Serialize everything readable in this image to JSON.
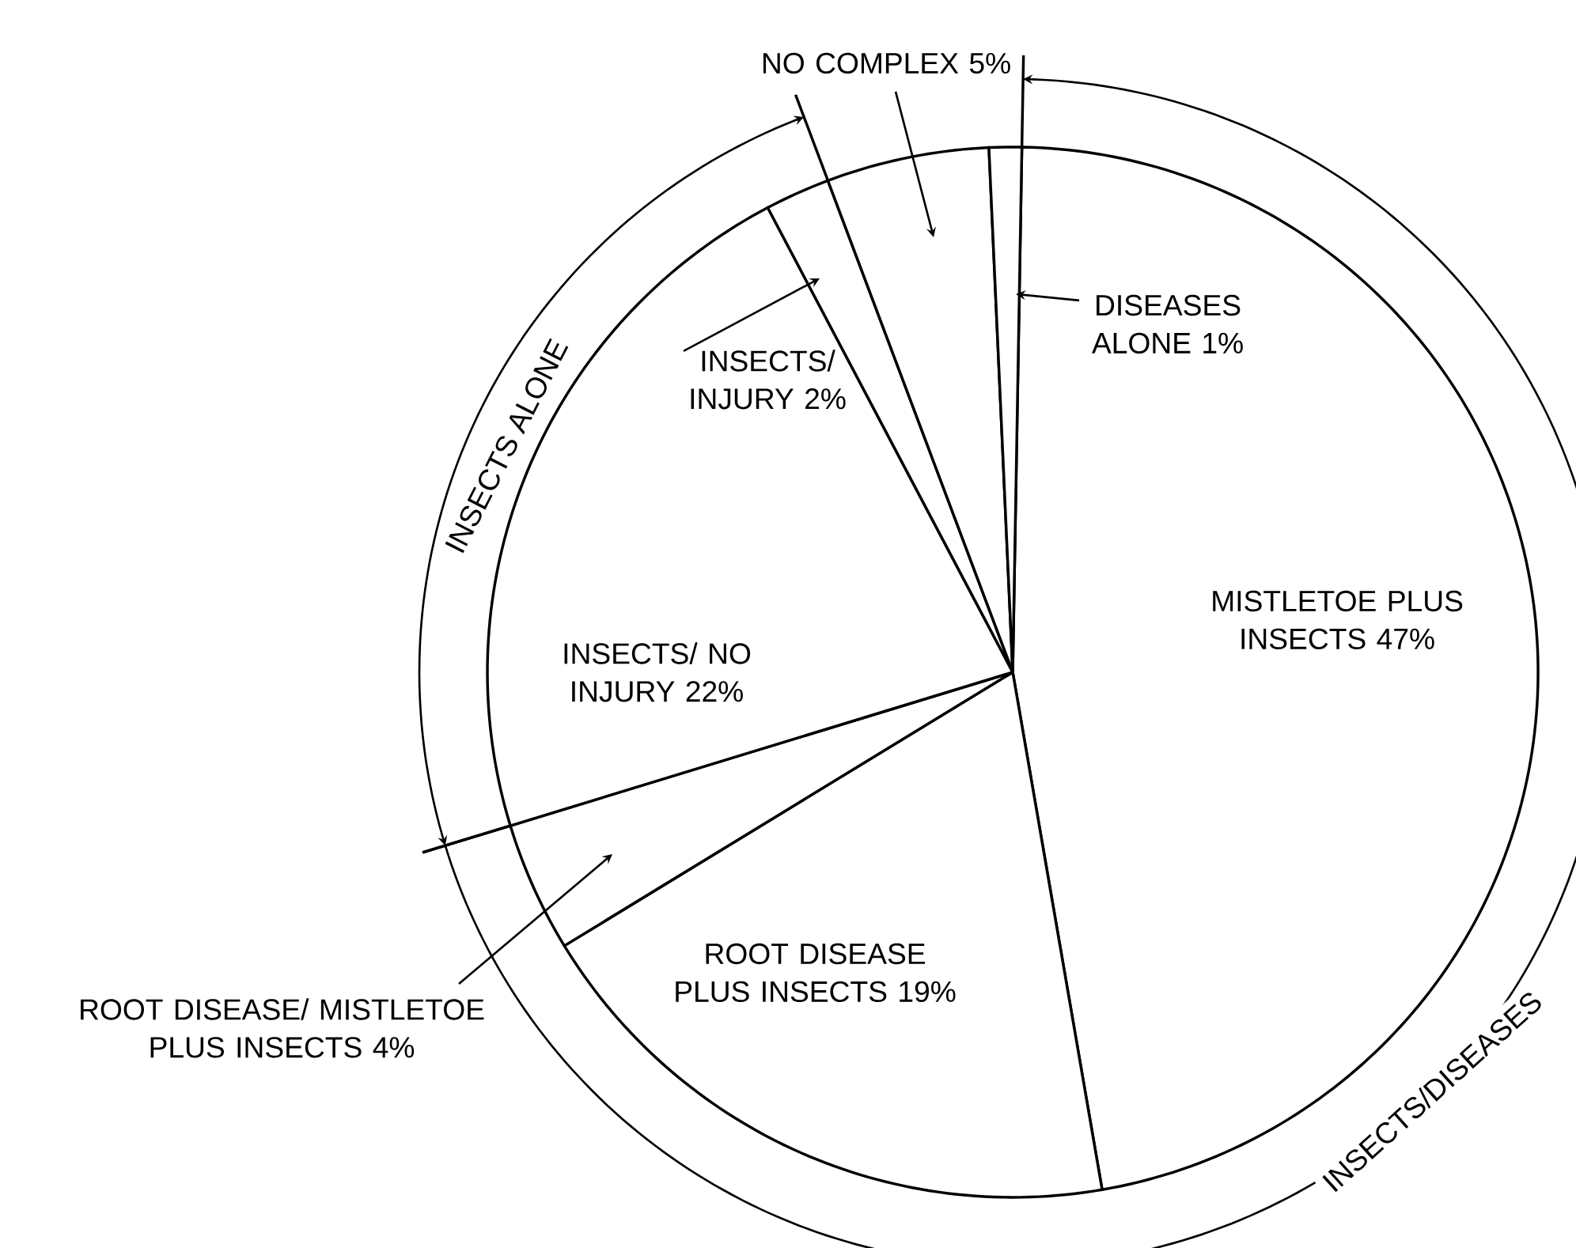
{
  "chart_data": {
    "type": "pie",
    "categories": [
      "MISTLETOE PLUS INSECTS",
      "ROOT DISEASE PLUS INSECTS",
      "ROOT DISEASE/ MISTLETOE PLUS INSECTS",
      "INSECTS/ NO INJURY",
      "INSECTS/ INJURY",
      "NO COMPLEX",
      "DISEASES ALONE"
    ],
    "values": [
      47,
      19,
      4,
      22,
      2,
      5,
      1
    ],
    "value_labels": [
      "47%",
      "19%",
      "4%",
      "22%",
      "2%",
      "5%",
      "1%"
    ],
    "colors": [
      "#ffffff",
      "#ffffff",
      "#ffffff",
      "#ffffff",
      "#ffffff",
      "#ffffff",
      "#ffffff"
    ],
    "annotations": [
      "INSECTS ALONE",
      "INSECTS/DISEASES"
    ]
  }
}
